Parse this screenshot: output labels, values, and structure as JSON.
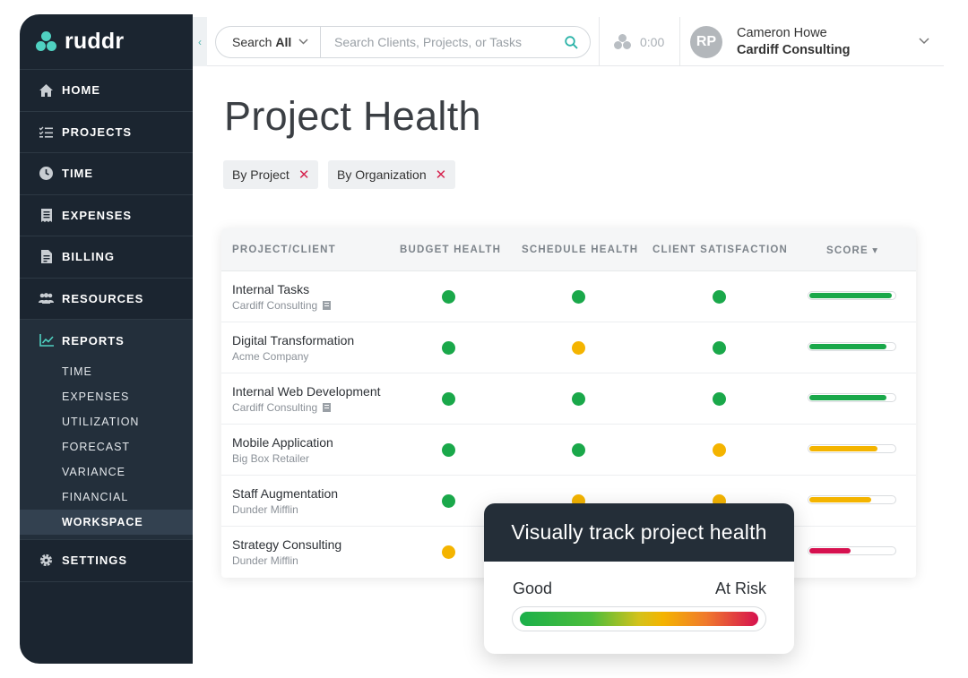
{
  "sidebar": {
    "logo": "ruddr",
    "nav": [
      {
        "label": "HOME",
        "icon": "home-icon"
      },
      {
        "label": "PROJECTS",
        "icon": "checklist-icon"
      },
      {
        "label": "TIME",
        "icon": "clock-icon"
      },
      {
        "label": "EXPENSES",
        "icon": "receipt-icon"
      },
      {
        "label": "BILLING",
        "icon": "invoice-icon"
      },
      {
        "label": "RESOURCES",
        "icon": "people-icon"
      }
    ],
    "reports": {
      "label": "REPORTS",
      "icon": "chart-line-icon",
      "items": [
        "TIME",
        "EXPENSES",
        "UTILIZATION",
        "FORECAST",
        "VARIANCE",
        "FINANCIAL",
        "WORKSPACE"
      ],
      "active": "WORKSPACE"
    },
    "settings": {
      "label": "SETTINGS",
      "icon": "gear-icon"
    }
  },
  "topbar": {
    "search_scope_prefix": "Search",
    "search_scope_value": "All",
    "search_placeholder": "Search Clients, Projects, or Tasks",
    "timer": "0:00",
    "user": {
      "initials": "RP",
      "name": "Cameron Howe",
      "org": "Cardiff Consulting"
    }
  },
  "page": {
    "title": "Project Health",
    "filters": [
      "By Project",
      "By Organization"
    ]
  },
  "table": {
    "headers": {
      "project": "PROJECT/CLIENT",
      "budget": "BUDGET HEALTH",
      "schedule": "SCHEDULE HEALTH",
      "satisfaction": "CLIENT SATISFACTION",
      "score": "SCORE ▾"
    },
    "rows": [
      {
        "project": "Internal Tasks",
        "client": "Cardiff Consulting",
        "internal": true,
        "budget": "good",
        "schedule": "good",
        "satisfaction": "good",
        "score": 0.97,
        "score_status": "good"
      },
      {
        "project": "Digital Transformation",
        "client": "Acme Company",
        "internal": false,
        "budget": "good",
        "schedule": "warn",
        "satisfaction": "good",
        "score": 0.9,
        "score_status": "good"
      },
      {
        "project": "Internal Web Development",
        "client": "Cardiff Consulting",
        "internal": true,
        "budget": "good",
        "schedule": "good",
        "satisfaction": "good",
        "score": 0.9,
        "score_status": "good"
      },
      {
        "project": "Mobile Application",
        "client": "Big Box Retailer",
        "internal": false,
        "budget": "good",
        "schedule": "good",
        "satisfaction": "warn",
        "score": 0.8,
        "score_status": "warn"
      },
      {
        "project": "Staff Augmentation",
        "client": "Dunder Mifflin",
        "internal": false,
        "budget": "good",
        "schedule": "warn",
        "satisfaction": "warn",
        "score": 0.73,
        "score_status": "warn"
      },
      {
        "project": "Strategy Consulting",
        "client": "Dunder Mifflin",
        "internal": false,
        "budget": "warn",
        "schedule": "warn",
        "satisfaction": "warn",
        "score": 0.48,
        "score_status": "risk"
      }
    ]
  },
  "status_colors": {
    "good": "#1aa84a",
    "warn": "#f4b400",
    "risk": "#d6114f"
  },
  "tip_card": {
    "title": "Visually track project health",
    "good_label": "Good",
    "risk_label": "At Risk"
  }
}
